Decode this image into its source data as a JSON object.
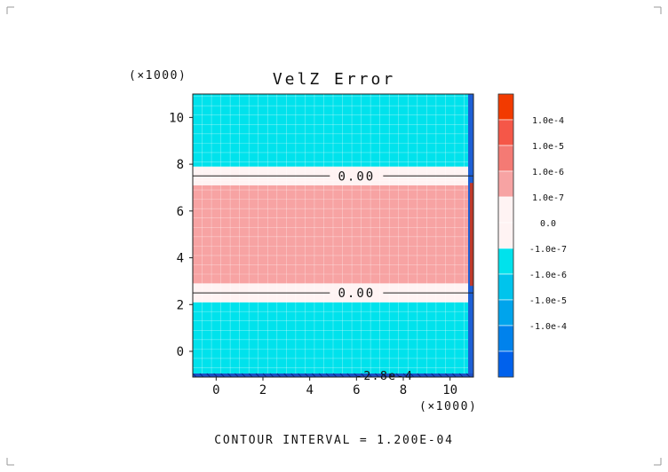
{
  "chart_data": {
    "type": "heatmap",
    "title": "VelZ Error",
    "x_multiplier": "(×1000)",
    "y_multiplier": "(×1000)",
    "xlim": [
      -1,
      11
    ],
    "ylim": [
      -1.1,
      11
    ],
    "x_ticks": [
      0,
      2,
      4,
      6,
      8,
      10
    ],
    "y_ticks": [
      0,
      2,
      4,
      6,
      8,
      10
    ],
    "grid": true,
    "bands": [
      {
        "y0": -1.1,
        "y1": 2.1,
        "level": "-1.0e-6 to -1.0e-7",
        "color": "#00e2ec"
      },
      {
        "y0": 2.1,
        "y1": 2.9,
        "level": "-1.0e-7 to 0.0",
        "color": "#fff3f3"
      },
      {
        "y0": 2.9,
        "y1": 7.1,
        "level": "1.0e-7 to 1.0e-6",
        "color": "#f7a3a3"
      },
      {
        "y0": 7.1,
        "y1": 7.9,
        "level": "-1.0e-7 to 0.0",
        "color": "#fff3f3"
      },
      {
        "y0": 7.9,
        "y1": 11,
        "level": "-1.0e-6 to -1.0e-7",
        "color": "#00e2ec"
      }
    ],
    "contour_lines": [
      {
        "y": 2.5,
        "label": "0.00"
      },
      {
        "y": 7.5,
        "label": "0.00"
      }
    ],
    "bottom_annotation": "-2.8e-4",
    "colorbar": {
      "levels": [
        {
          "label": "",
          "color": "#f23a00"
        },
        {
          "label": "1.0e-4",
          "color": "#f55748"
        },
        {
          "label": "1.0e-5",
          "color": "#f47a74"
        },
        {
          "label": "1.0e-6",
          "color": "#f7a3a3"
        },
        {
          "label": "1.0e-7",
          "color": "#fff3f3"
        },
        {
          "label": "0.0",
          "color": "#fff3f3"
        },
        {
          "label": "-1.0e-7",
          "color": "#00e2ec"
        },
        {
          "label": "-1.0e-6",
          "color": "#00c4ec"
        },
        {
          "label": "-1.0e-5",
          "color": "#00a4ec"
        },
        {
          "label": "-1.0e-4",
          "color": "#0082ec"
        },
        {
          "label": "",
          "color": "#0061ec"
        }
      ]
    },
    "footer": "CONTOUR INTERVAL = 1.200E-04"
  }
}
